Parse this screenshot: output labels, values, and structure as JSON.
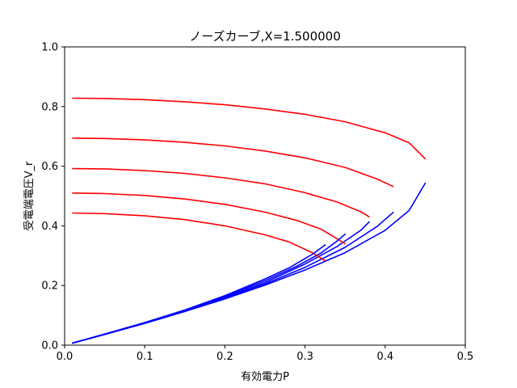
{
  "chart_data": {
    "type": "line",
    "title": "ノーズカーブ,X=1.500000",
    "xlabel": "有効電力P",
    "ylabel": "受電端電圧V_r",
    "xlim": [
      0,
      0.5
    ],
    "ylim": [
      0,
      1.0
    ],
    "xticks": [
      "0.0",
      "0.1",
      "0.2",
      "0.3",
      "0.4",
      "0.5"
    ],
    "yticks": [
      "0.0",
      "0.2",
      "0.4",
      "0.6",
      "0.8",
      "1.0"
    ],
    "grid": false,
    "legend": "none",
    "colors": {
      "upper": "#ff0000",
      "lower": "#0000ff"
    },
    "series": [
      {
        "upper": {
          "x": [
            0.01,
            0.05,
            0.1,
            0.15,
            0.2,
            0.25,
            0.3,
            0.35,
            0.4,
            0.43,
            0.45
          ],
          "y": [
            0.828,
            0.827,
            0.823,
            0.816,
            0.806,
            0.792,
            0.774,
            0.749,
            0.712,
            0.678,
            0.625
          ]
        },
        "lower": {
          "x": [
            0.01,
            0.05,
            0.1,
            0.15,
            0.2,
            0.25,
            0.3,
            0.35,
            0.4,
            0.43,
            0.45
          ],
          "y": [
            0.007,
            0.036,
            0.073,
            0.113,
            0.155,
            0.201,
            0.252,
            0.31,
            0.385,
            0.452,
            0.543
          ]
        }
      },
      {
        "upper": {
          "x": [
            0.01,
            0.05,
            0.1,
            0.15,
            0.2,
            0.25,
            0.3,
            0.35,
            0.39,
            0.41
          ],
          "y": [
            0.694,
            0.693,
            0.688,
            0.68,
            0.668,
            0.651,
            0.628,
            0.596,
            0.557,
            0.532
          ]
        },
        "lower": {
          "x": [
            0.01,
            0.05,
            0.1,
            0.15,
            0.2,
            0.25,
            0.3,
            0.35,
            0.39,
            0.41
          ],
          "y": [
            0.007,
            0.036,
            0.074,
            0.114,
            0.157,
            0.205,
            0.261,
            0.328,
            0.398,
            0.445
          ]
        }
      },
      {
        "upper": {
          "x": [
            0.01,
            0.05,
            0.1,
            0.15,
            0.2,
            0.25,
            0.3,
            0.34,
            0.37,
            0.38
          ],
          "y": [
            0.592,
            0.591,
            0.585,
            0.576,
            0.561,
            0.541,
            0.511,
            0.48,
            0.447,
            0.43
          ]
        },
        "lower": {
          "x": [
            0.01,
            0.05,
            0.1,
            0.15,
            0.2,
            0.25,
            0.3,
            0.34,
            0.37,
            0.38
          ],
          "y": [
            0.007,
            0.036,
            0.074,
            0.115,
            0.16,
            0.21,
            0.272,
            0.331,
            0.386,
            0.413
          ]
        }
      },
      {
        "upper": {
          "x": [
            0.01,
            0.05,
            0.1,
            0.15,
            0.2,
            0.25,
            0.29,
            0.32,
            0.34,
            0.35
          ],
          "y": [
            0.51,
            0.508,
            0.502,
            0.49,
            0.472,
            0.446,
            0.418,
            0.389,
            0.357,
            0.34
          ]
        },
        "lower": {
          "x": [
            0.01,
            0.05,
            0.1,
            0.15,
            0.2,
            0.25,
            0.29,
            0.32,
            0.34,
            0.35
          ],
          "y": [
            0.007,
            0.037,
            0.075,
            0.117,
            0.163,
            0.216,
            0.265,
            0.309,
            0.349,
            0.372
          ]
        }
      },
      {
        "upper": {
          "x": [
            0.01,
            0.05,
            0.1,
            0.15,
            0.2,
            0.25,
            0.28,
            0.31,
            0.325
          ],
          "y": [
            0.443,
            0.441,
            0.434,
            0.421,
            0.4,
            0.37,
            0.346,
            0.309,
            0.283
          ]
        },
        "lower": {
          "x": [
            0.01,
            0.05,
            0.1,
            0.15,
            0.2,
            0.25,
            0.28,
            0.31,
            0.325
          ],
          "y": [
            0.007,
            0.037,
            0.076,
            0.118,
            0.166,
            0.222,
            0.259,
            0.306,
            0.336
          ]
        }
      }
    ]
  }
}
